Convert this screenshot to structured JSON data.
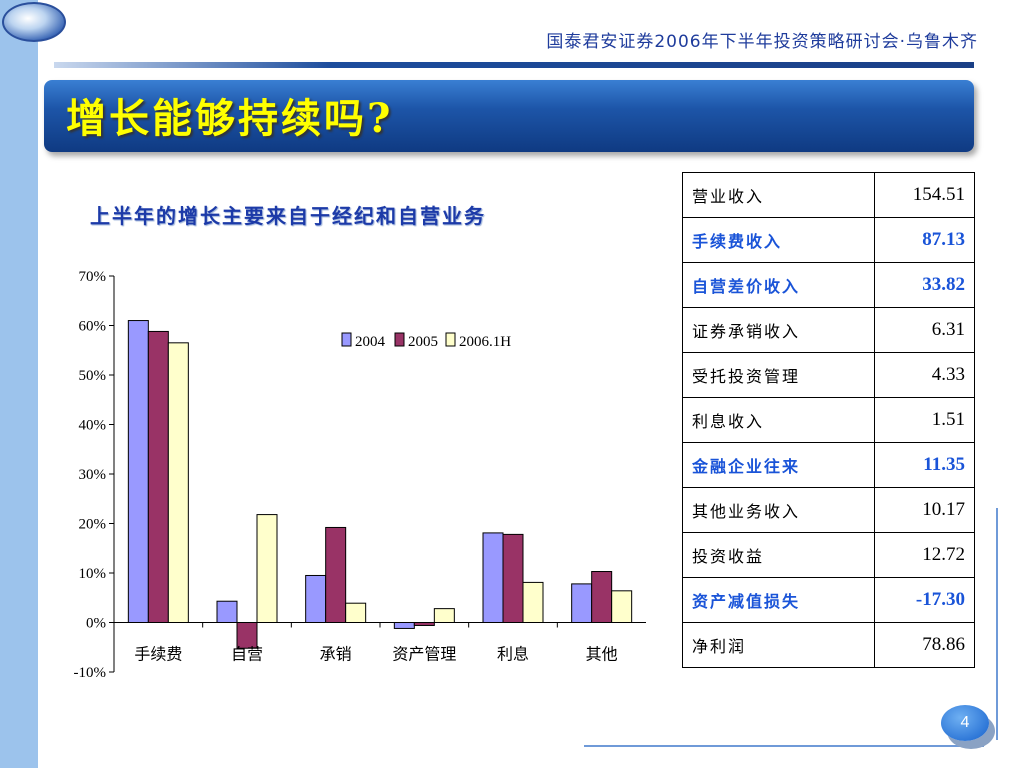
{
  "header": {
    "conference": "国泰君安证券2006年下半年投资策略研讨会·乌鲁木齐"
  },
  "slide": {
    "title": "增长能够持续吗?",
    "page_number": "4"
  },
  "colors": {
    "series_2004": "#9999ff",
    "series_2005": "#993366",
    "series_2006": "#ffffcc",
    "title_yellow": "#ffff00",
    "highlight_blue": "#1a54d8"
  },
  "chart_data": {
    "type": "bar",
    "title": "上半年的增长主要来自于经纪和自营业务",
    "categories": [
      "手续费",
      "自营",
      "承销",
      "资产管理",
      "利息",
      "其他"
    ],
    "series": [
      {
        "name": "2004",
        "values": [
          61,
          4.3,
          9.5,
          -1.2,
          18.1,
          7.8
        ]
      },
      {
        "name": "2005",
        "values": [
          58.8,
          -5.2,
          19.2,
          -0.6,
          17.8,
          10.3
        ]
      },
      {
        "name": "2006.1H",
        "values": [
          56.5,
          21.8,
          3.9,
          2.8,
          8.1,
          6.4
        ]
      }
    ],
    "ylim": [
      -10,
      70
    ],
    "yticks": [
      "-10%",
      "0%",
      "10%",
      "20%",
      "30%",
      "40%",
      "50%",
      "60%",
      "70%"
    ],
    "legend": "top-right",
    "grid": false
  },
  "table": {
    "rows": [
      {
        "label": "营业收入",
        "value": "154.51",
        "highlight": false
      },
      {
        "label": "手续费收入",
        "value": "87.13",
        "highlight": true
      },
      {
        "label": "自营差价收入",
        "value": "33.82",
        "highlight": true
      },
      {
        "label": "证券承销收入",
        "value": "6.31",
        "highlight": false
      },
      {
        "label": "受托投资管理",
        "value": "4.33",
        "highlight": false
      },
      {
        "label": "利息收入",
        "value": "1.51",
        "highlight": false
      },
      {
        "label": "金融企业往来",
        "value": "11.35",
        "highlight": true
      },
      {
        "label": "其他业务收入",
        "value": "10.17",
        "highlight": false
      },
      {
        "label": "投资收益",
        "value": "12.72",
        "highlight": false
      },
      {
        "label": "资产减值损失",
        "value": "-17.30",
        "highlight": true
      },
      {
        "label": "净利润",
        "value": "78.86",
        "highlight": false
      }
    ]
  }
}
